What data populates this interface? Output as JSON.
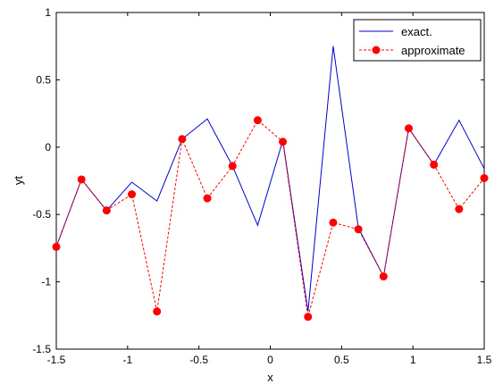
{
  "chart_data": {
    "type": "line",
    "xlabel": "x",
    "ylabel": "yt",
    "xlim": [
      -1.5,
      1.5
    ],
    "ylim": [
      -1.5,
      1
    ],
    "xticks": [
      -1.5,
      -1,
      -0.5,
      0,
      0.5,
      1,
      1.5
    ],
    "yticks": [
      -1.5,
      -1,
      -0.5,
      0,
      0.5,
      1
    ],
    "xtick_labels": [
      "-1.5",
      "-1",
      "-0.5",
      "0",
      "0.5",
      "1",
      "1.5"
    ],
    "ytick_labels": [
      "-1.5",
      "-1",
      "-0.5",
      "0",
      "0.5",
      "1"
    ],
    "grid": false,
    "legend_position": "top-right",
    "x": [
      -1.5,
      -1.3235,
      -1.1471,
      -0.9706,
      -0.7941,
      -0.6176,
      -0.4412,
      -0.2647,
      -0.0882,
      0.0882,
      0.2647,
      0.4412,
      0.6176,
      0.7941,
      0.9706,
      1.1471,
      1.3235,
      1.5
    ],
    "series": [
      {
        "name": "exact.",
        "color": "#0000cc",
        "style": "solid",
        "marker": "none",
        "values": [
          -0.74,
          -0.24,
          -0.47,
          -0.26,
          -0.4,
          0.06,
          0.21,
          -0.14,
          -0.58,
          0.05,
          -1.22,
          0.75,
          -0.6,
          -0.96,
          0.14,
          -0.13,
          0.2,
          -0.16
        ]
      },
      {
        "name": "approximate",
        "color": "#ff0000",
        "style": "dashed",
        "marker": "circle",
        "values": [
          -0.74,
          -0.24,
          -0.47,
          -0.35,
          -1.22,
          0.06,
          -0.38,
          -0.14,
          0.2,
          0.04,
          -1.26,
          -0.56,
          -0.61,
          -0.96,
          0.14,
          -0.13,
          -0.46,
          -0.23
        ]
      }
    ]
  }
}
